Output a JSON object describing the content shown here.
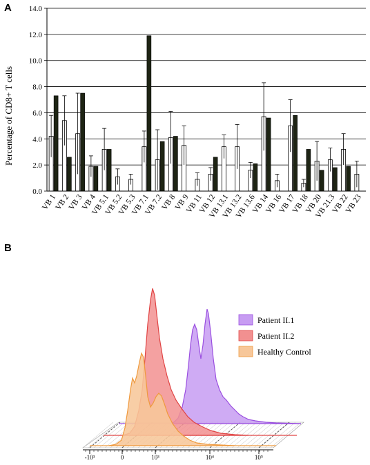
{
  "colors": {
    "patient_bar_fill": "#ffffff",
    "control_bar_fill": "#1e2414",
    "patient_ii1": "#c79cf2",
    "patient_ii1_line": "#9a4fe0",
    "patient_ii2": "#f29090",
    "patient_ii2_line": "#e04444",
    "healthy_control": "#f7c79a",
    "healthy_control_line": "#ef9a3e"
  },
  "chart_data": [
    {
      "panel_label": "A",
      "type": "bar",
      "ylabel": "Percentage of CD8+ T cells",
      "ylim": [
        0,
        14
      ],
      "yticks": [
        "0.0",
        "2.0",
        "4.0",
        "6.0",
        "8.0",
        "10.0",
        "12.0",
        "14.0"
      ],
      "grid": true,
      "categories": [
        "VB 1",
        "VB 2",
        "VB 3",
        "VB 4",
        "VB 5.1",
        "VB 5.2",
        "VB 5.3",
        "VB 7.1",
        "VB 7.2",
        "VB 8",
        "VB 9",
        "VB 11",
        "VB 12",
        "VB 13.1",
        "VB 13.2",
        "VB 13.6",
        "VB 14",
        "VB 16",
        "VB 17",
        "VB 18",
        "VB 20",
        "VB 21.3",
        "VB 22",
        "VB 23"
      ],
      "series": [
        {
          "values": [
            4.2,
            5.4,
            4.4,
            1.9,
            3.2,
            1.1,
            0.9,
            3.4,
            2.4,
            4.1,
            3.5,
            0.9,
            1.3,
            3.4,
            3.4,
            1.6,
            5.7,
            0.8,
            5.0,
            0.6,
            2.3,
            2.4,
            3.2,
            1.3
          ],
          "error": [
            1.6,
            1.9,
            3.1,
            0.8,
            1.6,
            0.6,
            0.4,
            1.2,
            2.3,
            2.0,
            1.5,
            0.5,
            0.5,
            0.9,
            1.7,
            0.6,
            2.6,
            0.5,
            2.0,
            0.3,
            1.5,
            0.9,
            1.2,
            1.0
          ]
        },
        {
          "values": [
            7.3,
            2.6,
            7.5,
            1.9,
            3.2,
            0,
            0,
            11.9,
            3.8,
            4.2,
            0,
            0,
            2.6,
            0,
            0,
            2.1,
            5.6,
            0,
            5.8,
            3.2,
            1.6,
            1.8,
            1.9,
            0
          ]
        }
      ]
    },
    {
      "panel_label": "B",
      "type": "area",
      "legend_position": "top-right",
      "x_ticks": [
        "-10³",
        "0",
        "10³",
        "10⁴",
        "10⁵"
      ],
      "series": [
        {
          "name": "Patient II.1"
        },
        {
          "name": "Patient II.2"
        },
        {
          "name": "Healthy Control"
        }
      ]
    }
  ]
}
